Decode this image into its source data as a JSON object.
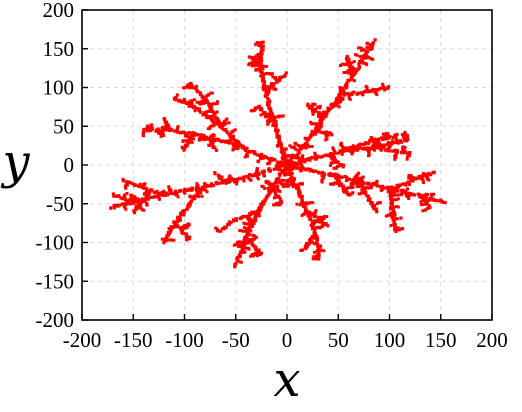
{
  "chart_data": {
    "type": "scatter",
    "title": "",
    "xlabel": "x",
    "ylabel": "y",
    "xlim": [
      -200,
      200
    ],
    "ylim": [
      -200,
      200
    ],
    "xticks": [
      -200,
      -150,
      -100,
      -50,
      0,
      50,
      100,
      150,
      200
    ],
    "yticks": [
      -200,
      -150,
      -100,
      -50,
      0,
      50,
      100,
      150,
      200
    ],
    "xtick_labels": [
      "-200",
      "-150",
      "-100",
      "-50",
      "0",
      "50",
      "100",
      "150",
      "200"
    ],
    "ytick_labels": [
      "-200",
      "-150",
      "-100",
      "-50",
      "0",
      "50",
      "100",
      "150",
      "200"
    ],
    "grid": true,
    "legend": "none",
    "colors": {
      "points": "#ff0000",
      "axes": "#000000",
      "grid": "#d9d9d9"
    },
    "description_of_shape": "",
    "series": [
      {
        "name": "",
        "branches": [
          {
            "x": [
              0,
              -8,
              -16,
              -22,
              -26,
              -24
            ],
            "y": [
              0,
              35,
              70,
              100,
              130,
              158
            ]
          },
          {
            "x": [
              -12,
              -28
            ],
            "y": [
              55,
              75
            ]
          },
          {
            "x": [
              -20,
              -2
            ],
            "y": [
              95,
              118
            ]
          },
          {
            "x": [
              -23,
              -36
            ],
            "y": [
              125,
              140
            ]
          },
          {
            "x": [
              0,
              18,
              35,
              52,
              65,
              76,
              86
            ],
            "y": [
              0,
              28,
              60,
              90,
              118,
              140,
              160
            ]
          },
          {
            "x": [
              52,
              80,
              100
            ],
            "y": [
              90,
              95,
              100
            ]
          },
          {
            "x": [
              38,
              25,
              20
            ],
            "y": [
              65,
              70,
              78
            ]
          },
          {
            "x": [
              65,
              58
            ],
            "y": [
              118,
              140
            ]
          },
          {
            "x": [
              28,
              45
            ],
            "y": [
              45,
              40
            ]
          },
          {
            "x": [
              0,
              30,
              60,
              90,
              120
            ],
            "y": [
              0,
              10,
              20,
              22,
              15
            ]
          },
          {
            "x": [
              60,
              85,
              108
            ],
            "y": [
              20,
              32,
              38
            ]
          },
          {
            "x": [
              80,
              100,
              118
            ],
            "y": [
              22,
              28,
              32
            ]
          },
          {
            "x": [
              40,
              55
            ],
            "y": [
              14,
              -2
            ]
          },
          {
            "x": [
              0,
              -25,
              -55,
              -90,
              -115,
              -140
            ],
            "y": [
              0,
              12,
              28,
              40,
              45,
              45
            ]
          },
          {
            "x": [
              -40,
              -65,
              -90,
              -110
            ],
            "y": [
              20,
              50,
              75,
              85
            ]
          },
          {
            "x": [
              -65,
              -80,
              -95
            ],
            "y": [
              50,
              85,
              105
            ]
          },
          {
            "x": [
              -90,
              -100
            ],
            "y": [
              40,
              20
            ]
          },
          {
            "x": [
              -115,
              -120
            ],
            "y": [
              45,
              60
            ]
          },
          {
            "x": [
              -75,
              -70
            ],
            "y": [
              34,
              20
            ]
          },
          {
            "x": [
              0,
              -40,
              -80,
              -120,
              -150,
              -172
            ],
            "y": [
              0,
              -15,
              -28,
              -38,
              -48,
              -55
            ]
          },
          {
            "x": [
              -120,
              -140,
              -160
            ],
            "y": [
              -38,
              -30,
              -20
            ]
          },
          {
            "x": [
              -150,
              -170
            ],
            "y": [
              -48,
              -38
            ]
          },
          {
            "x": [
              -80,
              -95,
              -110,
              -120
            ],
            "y": [
              -28,
              -50,
              -75,
              -100
            ]
          },
          {
            "x": [
              -110,
              -95
            ],
            "y": [
              -75,
              -95
            ]
          },
          {
            "x": [
              -60,
              -70
            ],
            "y": [
              -22,
              -10
            ]
          },
          {
            "x": [
              -140,
              -150
            ],
            "y": [
              -44,
              -60
            ]
          },
          {
            "x": [
              0,
              -15,
              -28,
              -40,
              -50
            ],
            "y": [
              0,
              -30,
              -60,
              -95,
              -130
            ]
          },
          {
            "x": [
              -28,
              -50,
              -65
            ],
            "y": [
              -60,
              -70,
              -85
            ]
          },
          {
            "x": [
              -40,
              -25
            ],
            "y": [
              -95,
              -115
            ]
          },
          {
            "x": [
              -15,
              -5
            ],
            "y": [
              -30,
              -50
            ]
          },
          {
            "x": [
              0,
              10,
              20,
              28,
              32
            ],
            "y": [
              0,
              -30,
              -60,
              -90,
              -120
            ]
          },
          {
            "x": [
              20,
              40
            ],
            "y": [
              -60,
              -78
            ]
          },
          {
            "x": [
              28,
              15
            ],
            "y": [
              -90,
              -110
            ]
          },
          {
            "x": [
              0,
              35,
              70,
              100,
              130,
              155
            ],
            "y": [
              0,
              -10,
              -20,
              -30,
              -40,
              -48
            ]
          },
          {
            "x": [
              100,
              115,
              130,
              145
            ],
            "y": [
              -30,
              -25,
              -15,
              -10
            ]
          },
          {
            "x": [
              70,
              80,
              88
            ],
            "y": [
              -20,
              -45,
              -60
            ]
          },
          {
            "x": [
              130,
              140
            ],
            "y": [
              -40,
              -55
            ]
          },
          {
            "x": [
              100,
              105
            ],
            "y": [
              -32,
              -85
            ]
          },
          {
            "x": [
              45,
              60
            ],
            "y": [
              -12,
              -40
            ]
          }
        ]
      }
    ]
  }
}
